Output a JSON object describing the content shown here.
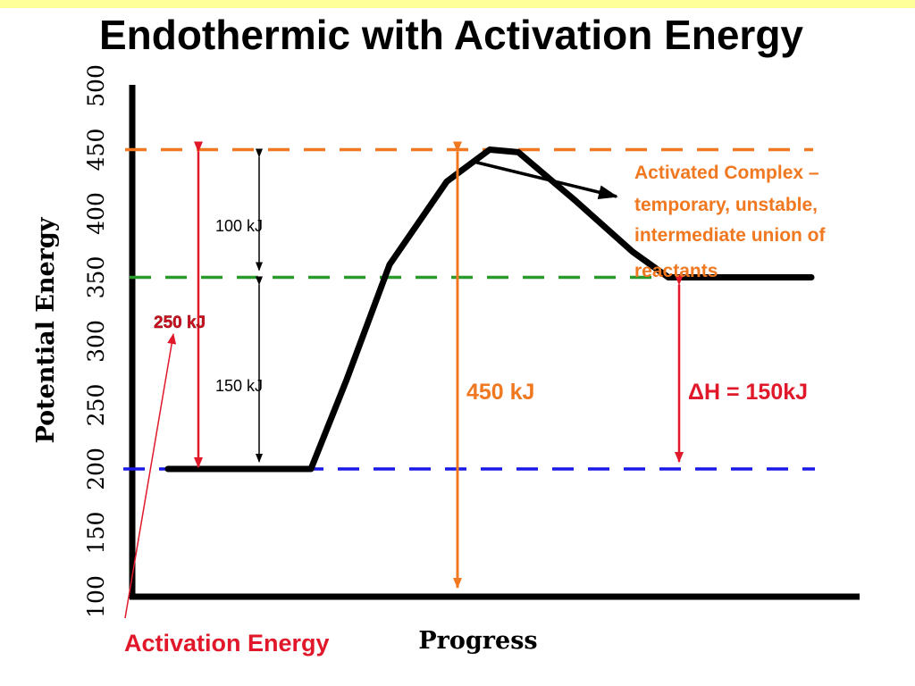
{
  "title": "Endothermic with Activation Energy",
  "colors": {
    "top_strip": "#ffff99",
    "curve": "#000000",
    "reactant_level": "#1a1ae6",
    "product_level": "#2a9a2a",
    "complex_level": "#f07820",
    "activation_arrow": "#e0182a",
    "complex_arrow": "#f07820",
    "delta_h_arrow": "#e0182a"
  },
  "chart_data": {
    "type": "line",
    "title": "Endothermic with Activation Energy",
    "xlabel": "Progress",
    "ylabel": "Potential Energy",
    "ylim": [
      100,
      500
    ],
    "y_ticks": [
      "100",
      "150",
      "200",
      "250",
      "300",
      "350",
      "400",
      "450",
      "500"
    ],
    "series": [
      {
        "points": [
          [
            0.05,
            200
          ],
          [
            0.25,
            200
          ],
          [
            0.3,
            270
          ],
          [
            0.36,
            360
          ],
          [
            0.44,
            425
          ],
          [
            0.5,
            450
          ],
          [
            0.54,
            448
          ],
          [
            0.62,
            410
          ],
          [
            0.7,
            370
          ],
          [
            0.75,
            350
          ],
          [
            0.95,
            350
          ]
        ]
      }
    ],
    "reference_levels": [
      {
        "key": "reactant",
        "value": 200,
        "style": "dashed"
      },
      {
        "key": "product",
        "value": 350,
        "style": "dashed"
      },
      {
        "key": "complex",
        "value": 450,
        "style": "dashed"
      }
    ],
    "annotations": {
      "activation_total": "250  kJ",
      "upper_segment": "100  kJ",
      "lower_segment": "150  kJ",
      "complex_energy": "450 kJ",
      "delta_h": "ΔH = 150kJ",
      "activation_energy": "Activation Energy",
      "activated_complex": [
        "Activated Complex –",
        "temporary, unstable,",
        "intermediate union of",
        "reactants"
      ]
    }
  }
}
